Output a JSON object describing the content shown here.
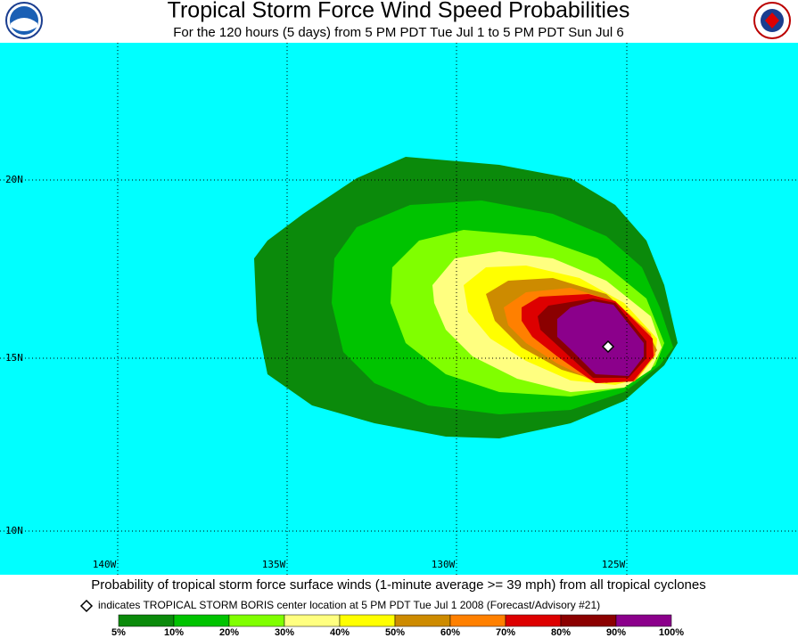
{
  "header": {
    "title": "Tropical Storm Force Wind Speed Probabilities",
    "subtitle": "For the 120 hours (5 days) from 5 PM PDT Tue Jul 1 to 5 PM PDT Sun Jul 6"
  },
  "map": {
    "lat_labels": [
      "20N",
      "15N",
      "10N"
    ],
    "lon_labels": [
      "140W",
      "135W",
      "130W",
      "125W"
    ],
    "background": "#00ffff"
  },
  "footer": {
    "caption": "Probability of tropical storm force surface winds (1-minute average >= 39 mph) from all tropical cyclones",
    "note": "indicates TROPICAL STORM BORIS center location at 5 PM PDT Tue Jul 1 2008 (Forecast/Advisory #21)"
  },
  "legend": {
    "labels": [
      "5%",
      "10%",
      "20%",
      "30%",
      "40%",
      "50%",
      "60%",
      "70%",
      "80%",
      "90%",
      "100%"
    ],
    "colors": [
      "#0b8a0b",
      "#00c300",
      "#80ff00",
      "#ffff80",
      "#ffff00",
      "#cd8b00",
      "#ff8000",
      "#dd0000",
      "#8b0000",
      "#8b008b"
    ]
  }
}
